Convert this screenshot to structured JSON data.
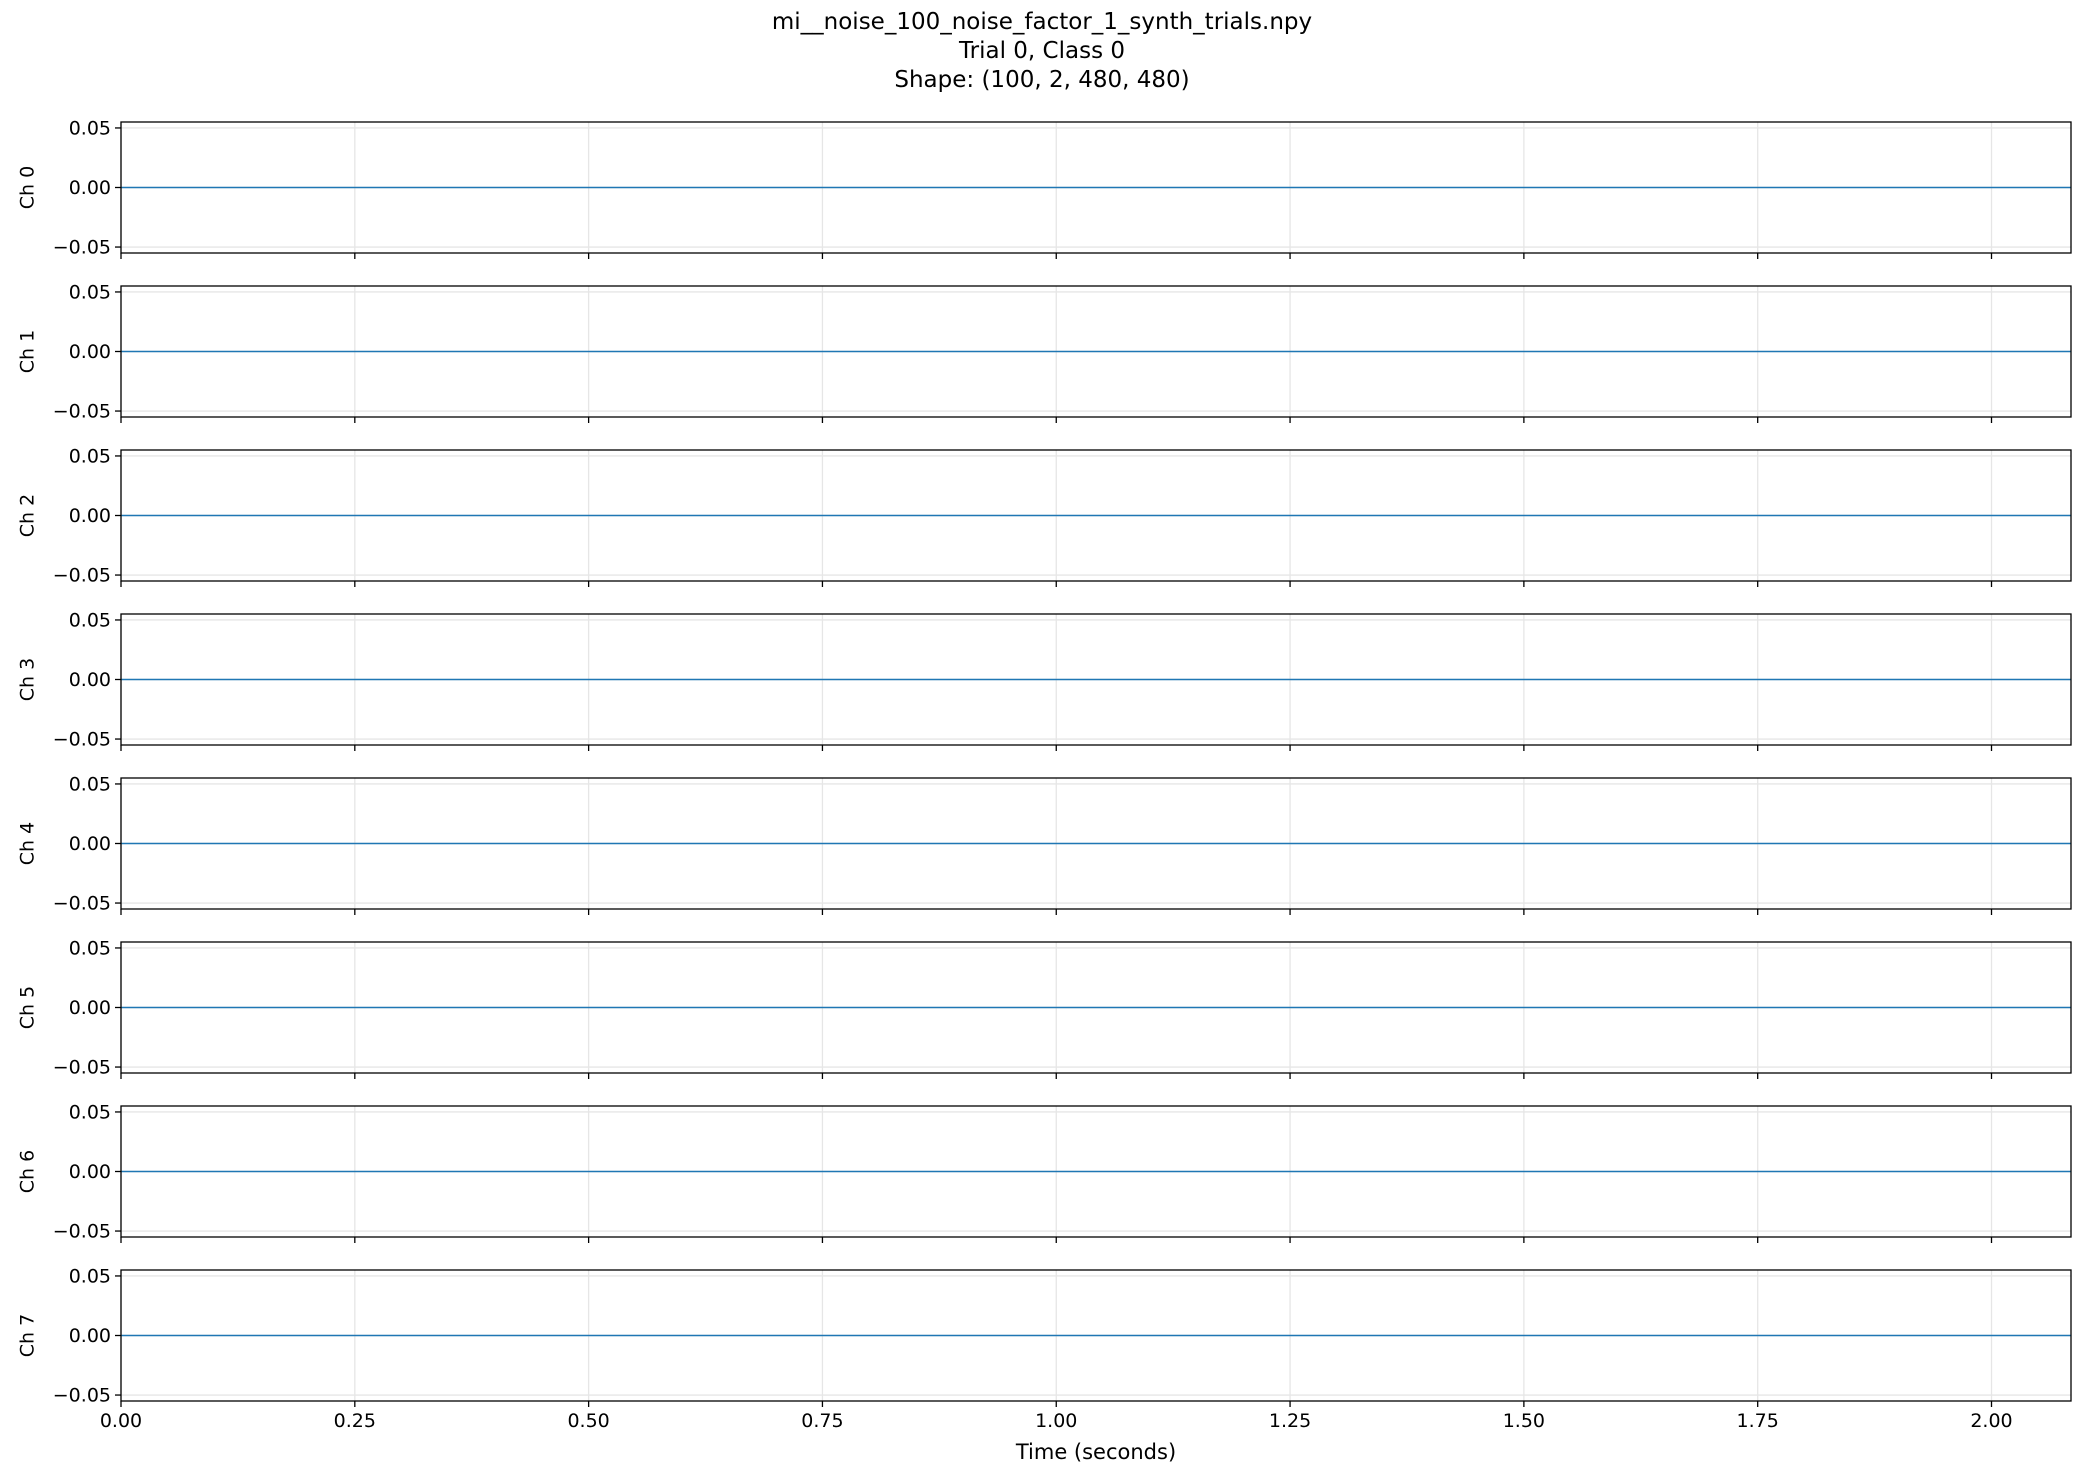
{
  "chart_data": {
    "type": "line",
    "title": {
      "lines": [
        "mi__noise_100_noise_factor_1_synth_trials.npy",
        "Trial 0, Class 0",
        "Shape: (100, 2, 480, 480)"
      ]
    },
    "xlabel": "Time (seconds)",
    "xlim": [
      0.0,
      2.085
    ],
    "xticks": [
      0.0,
      0.25,
      0.5,
      0.75,
      1.0,
      1.25,
      1.5,
      1.75,
      2.0
    ],
    "xtick_labels": [
      "0.00",
      "0.25",
      "0.50",
      "0.75",
      "1.00",
      "1.25",
      "1.50",
      "1.75",
      "2.00"
    ],
    "ylim": [
      -0.055,
      0.055
    ],
    "yticks": [
      0.05,
      0.0,
      -0.05
    ],
    "ytick_labels": [
      "0.05",
      "0.00",
      "−0.05"
    ],
    "grid": true,
    "shared_x": true,
    "line_color": "#1f77b4",
    "grid_color": "#e6e6e6",
    "x": [
      0.0,
      2.085
    ],
    "subplots": [
      {
        "ylabel": "Ch 0",
        "series": [
          {
            "values": [
              0.0,
              0.0
            ]
          }
        ]
      },
      {
        "ylabel": "Ch 1",
        "series": [
          {
            "values": [
              0.0,
              0.0
            ]
          }
        ]
      },
      {
        "ylabel": "Ch 2",
        "series": [
          {
            "values": [
              0.0,
              0.0
            ]
          }
        ]
      },
      {
        "ylabel": "Ch 3",
        "series": [
          {
            "values": [
              0.0,
              0.0
            ]
          }
        ]
      },
      {
        "ylabel": "Ch 4",
        "series": [
          {
            "values": [
              0.0,
              0.0
            ]
          }
        ]
      },
      {
        "ylabel": "Ch 5",
        "series": [
          {
            "values": [
              0.0,
              0.0
            ]
          }
        ]
      },
      {
        "ylabel": "Ch 6",
        "series": [
          {
            "values": [
              0.0,
              0.0
            ]
          }
        ]
      },
      {
        "ylabel": "Ch 7",
        "series": [
          {
            "values": [
              0.0,
              0.0
            ]
          }
        ]
      }
    ]
  }
}
